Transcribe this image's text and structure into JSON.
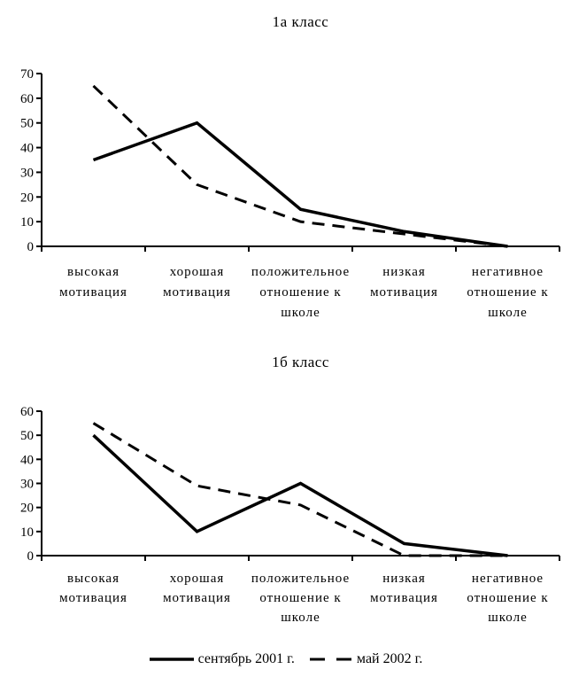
{
  "colors": {
    "ink": "#000000",
    "background": "#ffffff"
  },
  "chart_data": [
    {
      "type": "line",
      "title": "1а класс",
      "categories": [
        "высокая мотивация",
        "хорошая мотивация",
        "положительное отношение к школе",
        "низкая мотивация",
        "негативное отношение к школе"
      ],
      "series": [
        {
          "name": "сентябрь 2001 г.",
          "line_style": "solid",
          "values": [
            35,
            50,
            15,
            6,
            0
          ]
        },
        {
          "name": "май 2002 г.",
          "line_style": "dashed",
          "values": [
            65,
            25,
            10,
            5,
            0
          ]
        }
      ],
      "xlabel": "",
      "ylabel": "",
      "ylim": [
        0,
        70
      ],
      "yticks": [
        0,
        10,
        20,
        30,
        40,
        50,
        60,
        70
      ],
      "grid": false,
      "legend_position": "shared-bottom"
    },
    {
      "type": "line",
      "title": "1б класс",
      "categories": [
        "высокая мотивация",
        "хорошая мотивация",
        "положительное отношение к школе",
        "низкая мотивация",
        "негативное отношение к школе"
      ],
      "series": [
        {
          "name": "сентябрь 2001 г.",
          "line_style": "solid",
          "values": [
            50,
            10,
            30,
            5,
            0
          ]
        },
        {
          "name": "май 2002 г.",
          "line_style": "dashed",
          "values": [
            55,
            29,
            21,
            0,
            0
          ]
        }
      ],
      "xlabel": "",
      "ylabel": "",
      "ylim": [
        0,
        60
      ],
      "yticks": [
        0,
        10,
        20,
        30,
        40,
        50,
        60
      ],
      "grid": false,
      "legend_position": "shared-bottom"
    }
  ],
  "legend": {
    "items": [
      {
        "label": "сентябрь 2001 г.",
        "line_style": "solid"
      },
      {
        "label": "май 2002 г.",
        "line_style": "dashed"
      }
    ]
  }
}
